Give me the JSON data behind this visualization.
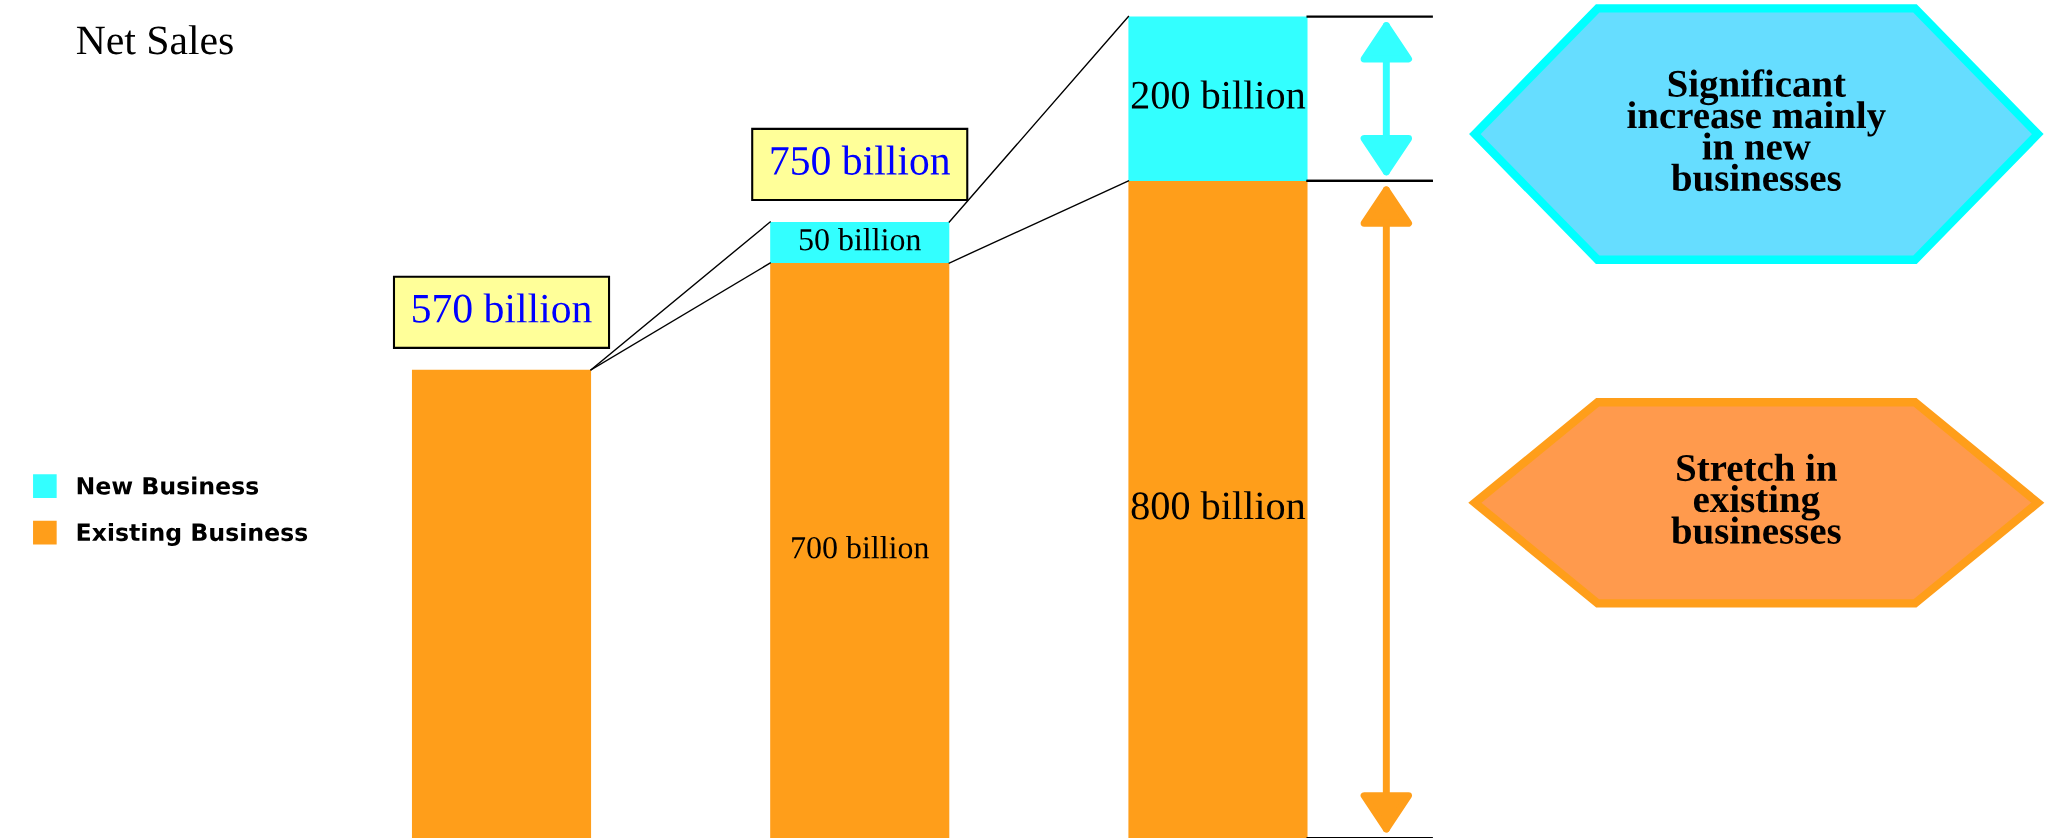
{
  "chart_data": {
    "type": "bar",
    "title": "Net Sales",
    "stacked": true,
    "categories": [
      null,
      null,
      null
    ],
    "series": [
      {
        "name": "Existing Business",
        "color": "#ff9e1a",
        "values": [
          570,
          700,
          800
        ],
        "value_labels": [
          null,
          "700 billion",
          "800 billion"
        ]
      },
      {
        "name": "New Business",
        "color": "#33ffff",
        "values": [
          null,
          50,
          200
        ],
        "value_labels": [
          null,
          "50 billion",
          "200 billion"
        ]
      }
    ],
    "totals": [
      "570 billion",
      "750 billion",
      null
    ],
    "annotations": [
      "Significant\nincrease mainly\nin new\nbusinesses",
      "Stretch in\nexisting\nbusinesses"
    ],
    "legend": "left"
  }
}
